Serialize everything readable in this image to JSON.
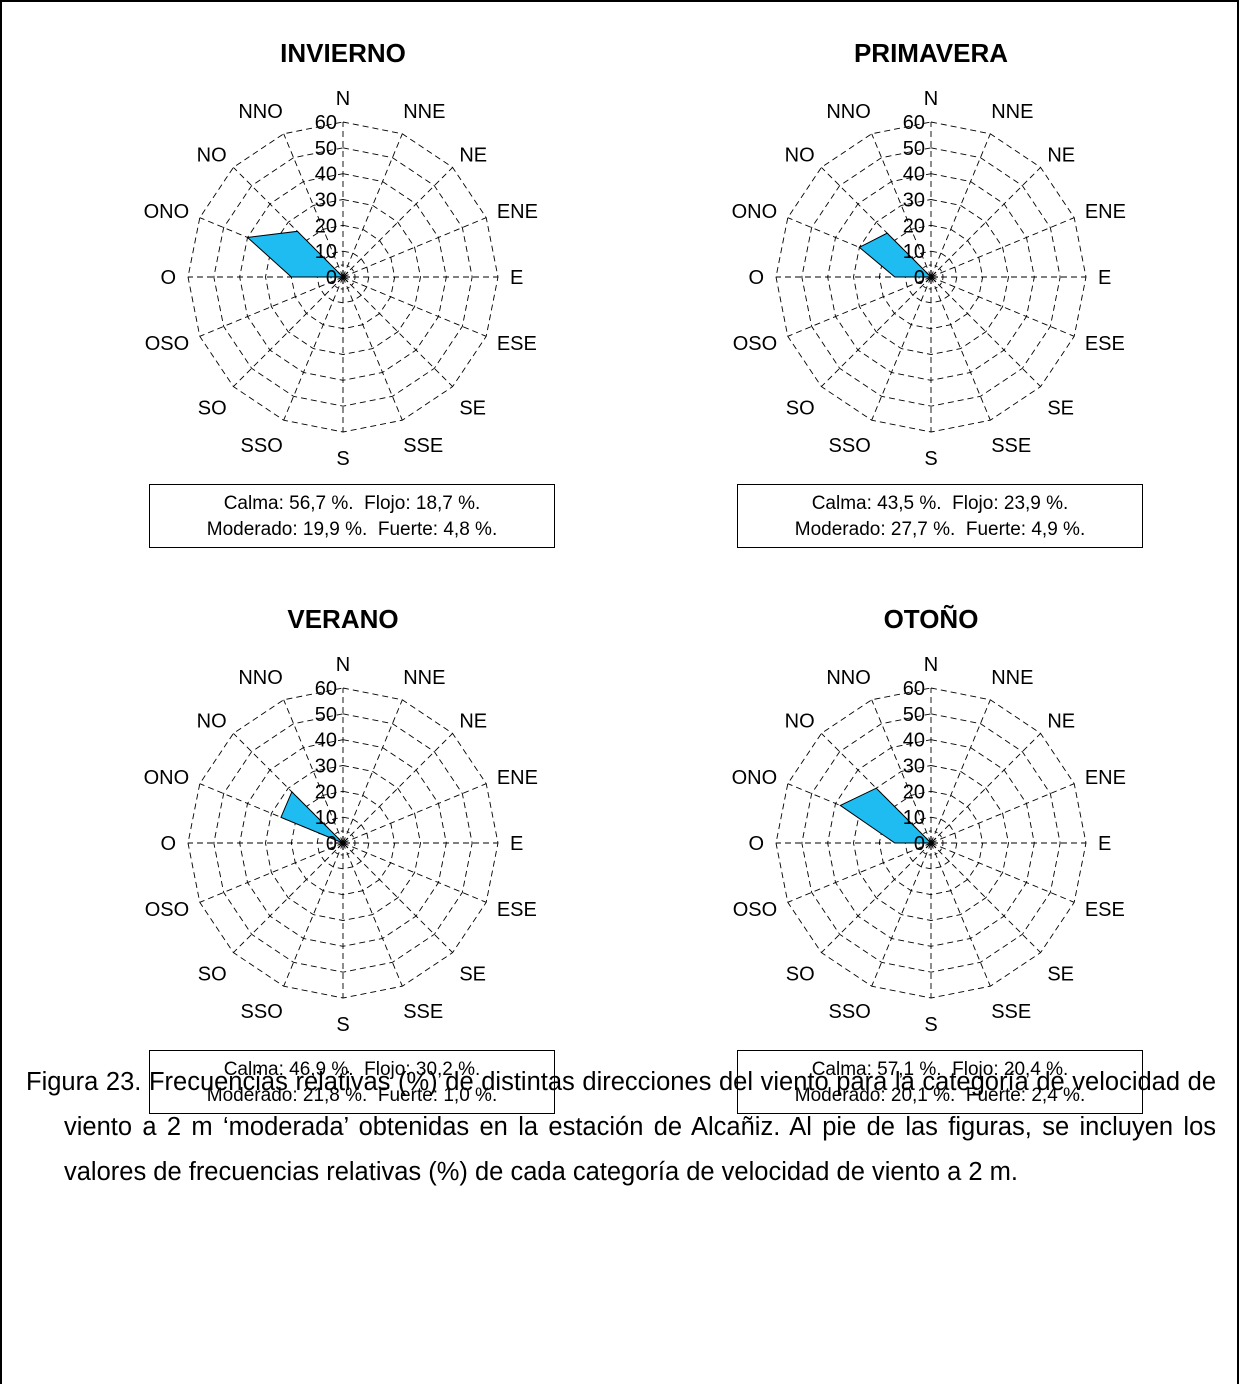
{
  "chart_data": [
    {
      "type": "polar-area",
      "title": "INVIERNO",
      "directions": [
        "N",
        "NNE",
        "NE",
        "ENE",
        "E",
        "ESE",
        "SE",
        "SSE",
        "S",
        "SSO",
        "SO",
        "OSO",
        "O",
        "ONO",
        "NO",
        "NNO"
      ],
      "rlim": [
        0,
        60
      ],
      "rticks": [
        "0",
        "10",
        "20",
        "30",
        "40",
        "50",
        "60"
      ],
      "values": [
        0,
        0,
        0,
        0,
        0,
        0,
        0,
        0,
        0,
        0,
        0,
        0,
        20,
        40,
        25,
        0
      ],
      "color": "#1EBCF0",
      "stats_line1": "Calma: 56,7 %.  Flojo: 18,7 %.",
      "stats_line2": "Moderado: 19,9 %.  Fuerte: 4,8 %."
    },
    {
      "type": "polar-area",
      "title": "PRIMAVERA",
      "directions": [
        "N",
        "NNE",
        "NE",
        "ENE",
        "E",
        "ESE",
        "SE",
        "SSE",
        "S",
        "SSO",
        "SO",
        "OSO",
        "O",
        "ONO",
        "NO",
        "NNO"
      ],
      "rlim": [
        0,
        60
      ],
      "rticks": [
        "0",
        "10",
        "20",
        "30",
        "40",
        "50",
        "60"
      ],
      "values": [
        0,
        0,
        0,
        0,
        0,
        0,
        0,
        0,
        0,
        0,
        0,
        0,
        14,
        30,
        24,
        0
      ],
      "color": "#1EBCF0",
      "stats_line1": "Calma: 43,5 %.  Flojo: 23,9 %.",
      "stats_line2": "Moderado: 27,7 %.  Fuerte: 4,9 %."
    },
    {
      "type": "polar-area",
      "title": "VERANO",
      "directions": [
        "N",
        "NNE",
        "NE",
        "ENE",
        "E",
        "ESE",
        "SE",
        "SSE",
        "S",
        "SSO",
        "SO",
        "OSO",
        "O",
        "ONO",
        "NO",
        "NNO"
      ],
      "rlim": [
        0,
        60
      ],
      "rticks": [
        "0",
        "10",
        "20",
        "30",
        "40",
        "50",
        "60"
      ],
      "values": [
        0,
        0,
        0,
        0,
        0,
        0,
        0,
        0,
        0,
        0,
        0,
        0,
        0,
        26,
        28,
        0
      ],
      "color": "#1EBCF0",
      "stats_line1": "Calma: 46,9 %.  Flojo: 30,2 %.",
      "stats_line2": "Moderado: 21,8 %.  Fuerte: 1,0 %."
    },
    {
      "type": "polar-area",
      "title": "OTOÑO",
      "directions": [
        "N",
        "NNE",
        "NE",
        "ENE",
        "E",
        "ESE",
        "SE",
        "SSE",
        "S",
        "SSO",
        "SO",
        "OSO",
        "O",
        "ONO",
        "NO",
        "NNO"
      ],
      "rlim": [
        0,
        60
      ],
      "rticks": [
        "0",
        "10",
        "20",
        "30",
        "40",
        "50",
        "60"
      ],
      "values": [
        0,
        0,
        0,
        0,
        0,
        0,
        0,
        0,
        0,
        0,
        0,
        0,
        14,
        38,
        30,
        0
      ],
      "color": "#1EBCF0",
      "stats_line1": "Calma: 57,1 %.  Flojo: 20,4 %.",
      "stats_line2": "Moderado: 20,1 %.  Fuerte: 2,4 %."
    }
  ],
  "caption": "Figura 23. Frecuencias relativas (%) de distintas direcciones del viento para la categoría de velocidad de viento a 2 m ‘moderada’ obtenidas en la estación de Alcañiz. Al pie de las figuras, se incluyen los valores de frecuencias relativas (%) de cada categoría de velocidad de viento a 2 m."
}
